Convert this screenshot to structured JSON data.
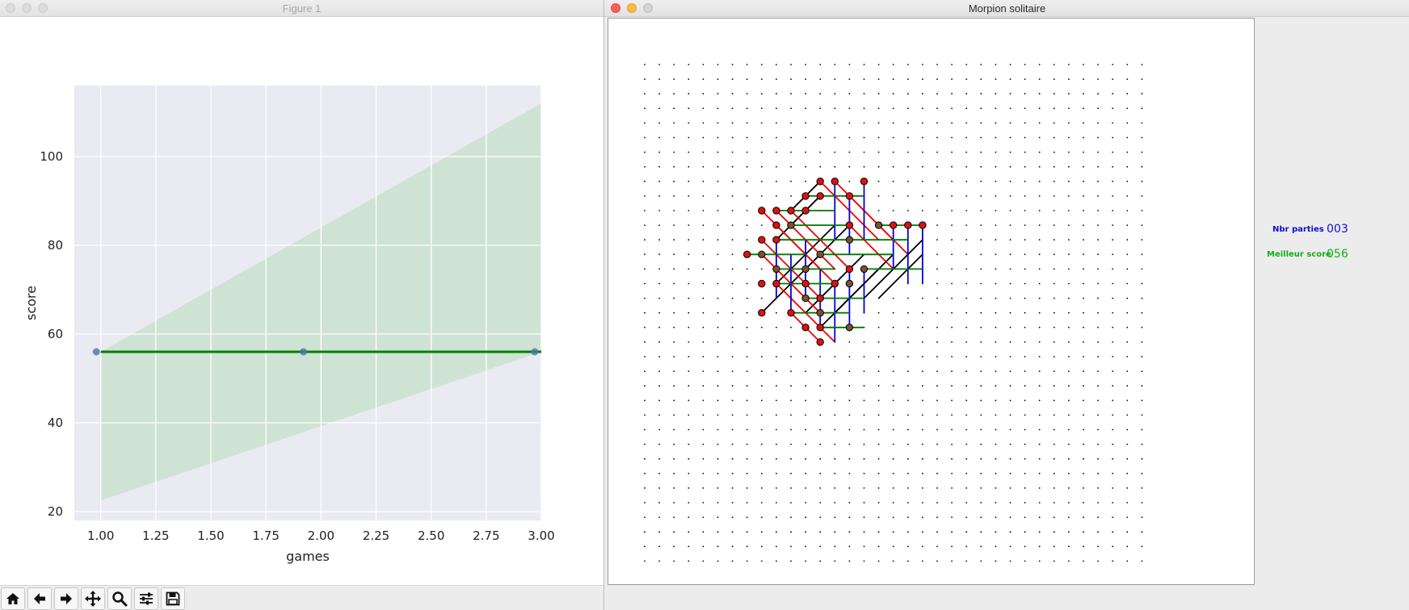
{
  "figure_window": {
    "title": "Figure 1",
    "toolbar": [
      {
        "name": "home",
        "icon": "home-icon"
      },
      {
        "name": "back",
        "icon": "arrow-left-icon"
      },
      {
        "name": "forward",
        "icon": "arrow-right-icon"
      },
      {
        "name": "pan",
        "icon": "move-icon"
      },
      {
        "name": "zoom",
        "icon": "search-icon"
      },
      {
        "name": "configure",
        "icon": "sliders-icon"
      },
      {
        "name": "save",
        "icon": "save-icon"
      }
    ]
  },
  "chart_data": {
    "type": "line",
    "style": "seaborn-regression",
    "xlabel": "games",
    "ylabel": "score",
    "xlim": [
      0.88,
      3.0
    ],
    "ylim": [
      18,
      116
    ],
    "x_ticks": [
      "1.00",
      "1.25",
      "1.50",
      "1.75",
      "2.00",
      "2.25",
      "2.50",
      "2.75",
      "3.00"
    ],
    "y_ticks": [
      "20",
      "40",
      "60",
      "80",
      "100"
    ],
    "grid": true,
    "scatter_points": [
      {
        "x": 0.98,
        "y": 56
      },
      {
        "x": 1.92,
        "y": 56
      },
      {
        "x": 2.97,
        "y": 56
      }
    ],
    "regression_line": {
      "x": [
        1.0,
        3.0
      ],
      "y": [
        56,
        56
      ],
      "color": "#008000"
    },
    "confidence_band": {
      "x": [
        1.0,
        3.0
      ],
      "upper": [
        56,
        112
      ],
      "lower": [
        22.5,
        56
      ]
    },
    "colors": {
      "points": "#4c72b0",
      "band": "#cfe3d4",
      "background": "#eaeaf2",
      "grid": "#ffffff"
    }
  },
  "game_window": {
    "title": "Morpion solitaire",
    "stats": {
      "games_label": "Nbr parties",
      "games_value": "003",
      "best_label": "Meilleur score",
      "best_value": "056"
    },
    "colors": {
      "games": "#1010d0",
      "best": "#10b010"
    }
  },
  "board": {
    "cols": 35,
    "rows": 35,
    "cells": [
      {
        "c": 12,
        "r": 8,
        "red": true
      },
      {
        "c": 13,
        "r": 8,
        "red": true
      },
      {
        "c": 15,
        "r": 8,
        "red": true
      },
      {
        "c": 11,
        "r": 9,
        "red": true
      },
      {
        "c": 12,
        "r": 9,
        "red": true
      },
      {
        "c": 14,
        "r": 9,
        "red": true
      },
      {
        "c": 8,
        "r": 10,
        "red": true
      },
      {
        "c": 9,
        "r": 10,
        "red": true
      },
      {
        "c": 10,
        "r": 10,
        "red": true
      },
      {
        "c": 11,
        "r": 10,
        "red": true
      },
      {
        "c": 9,
        "r": 11,
        "red": true
      },
      {
        "c": 10,
        "r": 11,
        "red": false
      },
      {
        "c": 14,
        "r": 11,
        "red": true
      },
      {
        "c": 16,
        "r": 11,
        "red": false
      },
      {
        "c": 17,
        "r": 11,
        "red": true
      },
      {
        "c": 18,
        "r": 11,
        "red": true
      },
      {
        "c": 19,
        "r": 11,
        "red": true
      },
      {
        "c": 8,
        "r": 12,
        "red": true
      },
      {
        "c": 9,
        "r": 12,
        "red": true
      },
      {
        "c": 14,
        "r": 12,
        "red": false
      },
      {
        "c": 7,
        "r": 13,
        "red": true
      },
      {
        "c": 8,
        "r": 13,
        "red": false
      },
      {
        "c": 12,
        "r": 13,
        "red": false
      },
      {
        "c": 9,
        "r": 14,
        "red": false
      },
      {
        "c": 11,
        "r": 14,
        "red": false
      },
      {
        "c": 14,
        "r": 14,
        "red": true
      },
      {
        "c": 15,
        "r": 14,
        "red": false
      },
      {
        "c": 8,
        "r": 15,
        "red": true
      },
      {
        "c": 9,
        "r": 15,
        "red": true
      },
      {
        "c": 11,
        "r": 15,
        "red": true
      },
      {
        "c": 13,
        "r": 15,
        "red": true
      },
      {
        "c": 14,
        "r": 15,
        "red": false
      },
      {
        "c": 11,
        "r": 16,
        "red": false
      },
      {
        "c": 12,
        "r": 16,
        "red": true
      },
      {
        "c": 8,
        "r": 17,
        "red": true
      },
      {
        "c": 10,
        "r": 17,
        "red": true
      },
      {
        "c": 12,
        "r": 17,
        "red": false
      },
      {
        "c": 11,
        "r": 18,
        "red": true
      },
      {
        "c": 12,
        "r": 18,
        "red": true
      },
      {
        "c": 14,
        "r": 18,
        "red": false
      },
      {
        "c": 12,
        "r": 19,
        "red": true
      }
    ],
    "lines": [
      {
        "color": "black",
        "from": [
          8,
          17
        ],
        "to": [
          12,
          13
        ]
      },
      {
        "color": "black",
        "from": [
          9,
          15
        ],
        "to": [
          13,
          11
        ]
      },
      {
        "color": "black",
        "from": [
          9,
          12
        ],
        "to": [
          12,
          9
        ]
      },
      {
        "color": "black",
        "from": [
          10,
          11
        ],
        "to": [
          12,
          9
        ]
      },
      {
        "color": "black",
        "from": [
          10,
          10
        ],
        "to": [
          12,
          8
        ]
      },
      {
        "color": "black",
        "from": [
          11,
          17
        ],
        "to": [
          15,
          13
        ]
      },
      {
        "color": "black",
        "from": [
          12,
          18
        ],
        "to": [
          16,
          14
        ]
      },
      {
        "color": "black",
        "from": [
          13,
          17
        ],
        "to": [
          17,
          13
        ]
      },
      {
        "color": "black",
        "from": [
          15,
          16
        ],
        "to": [
          19,
          12
        ]
      },
      {
        "color": "black",
        "from": [
          16,
          16
        ],
        "to": [
          19,
          13
        ]
      },
      {
        "color": "black",
        "from": [
          11,
          14
        ],
        "to": [
          14,
          11
        ]
      },
      {
        "color": "red",
        "from": [
          8,
          10
        ],
        "to": [
          12,
          14
        ]
      },
      {
        "color": "red",
        "from": [
          8,
          12
        ],
        "to": [
          12,
          16
        ]
      },
      {
        "color": "red",
        "from": [
          9,
          10
        ],
        "to": [
          13,
          14
        ]
      },
      {
        "color": "red",
        "from": [
          10,
          10
        ],
        "to": [
          14,
          14
        ]
      },
      {
        "color": "red",
        "from": [
          12,
          8
        ],
        "to": [
          16,
          12
        ]
      },
      {
        "color": "red",
        "from": [
          13,
          8
        ],
        "to": [
          17,
          12
        ]
      },
      {
        "color": "red",
        "from": [
          14,
          9
        ],
        "to": [
          18,
          13
        ]
      },
      {
        "color": "red",
        "from": [
          9,
          11
        ],
        "to": [
          13,
          15
        ]
      },
      {
        "color": "red",
        "from": [
          8,
          13
        ],
        "to": [
          12,
          17
        ]
      },
      {
        "color": "red",
        "from": [
          9,
          15
        ],
        "to": [
          13,
          19
        ]
      },
      {
        "color": "red",
        "from": [
          10,
          17
        ],
        "to": [
          12,
          19
        ]
      },
      {
        "color": "red",
        "from": [
          14,
          11
        ],
        "to": [
          17,
          14
        ]
      },
      {
        "color": "blue",
        "from": [
          13,
          8
        ],
        "to": [
          13,
          12
        ]
      },
      {
        "color": "blue",
        "from": [
          15,
          8
        ],
        "to": [
          15,
          12
        ]
      },
      {
        "color": "blue",
        "from": [
          14,
          9
        ],
        "to": [
          14,
          13
        ]
      },
      {
        "color": "blue",
        "from": [
          11,
          12
        ],
        "to": [
          11,
          16
        ]
      },
      {
        "color": "blue",
        "from": [
          12,
          14
        ],
        "to": [
          12,
          18
        ]
      },
      {
        "color": "blue",
        "from": [
          13,
          15
        ],
        "to": [
          13,
          19
        ]
      },
      {
        "color": "blue",
        "from": [
          14,
          14
        ],
        "to": [
          14,
          18
        ]
      },
      {
        "color": "blue",
        "from": [
          9,
          12
        ],
        "to": [
          9,
          16
        ]
      },
      {
        "color": "blue",
        "from": [
          10,
          13
        ],
        "to": [
          10,
          17
        ]
      },
      {
        "color": "blue",
        "from": [
          15,
          14
        ],
        "to": [
          15,
          17
        ]
      },
      {
        "color": "blue",
        "from": [
          17,
          11
        ],
        "to": [
          17,
          14
        ]
      },
      {
        "color": "blue",
        "from": [
          18,
          11
        ],
        "to": [
          18,
          15
        ]
      },
      {
        "color": "blue",
        "from": [
          19,
          11
        ],
        "to": [
          19,
          15
        ]
      },
      {
        "color": "green",
        "from": [
          11,
          9
        ],
        "to": [
          15,
          9
        ]
      },
      {
        "color": "green",
        "from": [
          9,
          10
        ],
        "to": [
          13,
          10
        ]
      },
      {
        "color": "green",
        "from": [
          16,
          11
        ],
        "to": [
          19,
          11
        ]
      },
      {
        "color": "green",
        "from": [
          10,
          11
        ],
        "to": [
          14,
          11
        ]
      },
      {
        "color": "green",
        "from": [
          9,
          12
        ],
        "to": [
          14,
          12
        ]
      },
      {
        "color": "green",
        "from": [
          14,
          12
        ],
        "to": [
          18,
          12
        ]
      },
      {
        "color": "green",
        "from": [
          7,
          13
        ],
        "to": [
          11,
          13
        ]
      },
      {
        "color": "green",
        "from": [
          12,
          13
        ],
        "to": [
          17,
          13
        ]
      },
      {
        "color": "green",
        "from": [
          9,
          14
        ],
        "to": [
          13,
          14
        ]
      },
      {
        "color": "green",
        "from": [
          15,
          14
        ],
        "to": [
          19,
          14
        ]
      },
      {
        "color": "green",
        "from": [
          9,
          15
        ],
        "to": [
          13,
          15
        ]
      },
      {
        "color": "green",
        "from": [
          11,
          16
        ],
        "to": [
          15,
          16
        ]
      },
      {
        "color": "green",
        "from": [
          10,
          17
        ],
        "to": [
          14,
          17
        ]
      },
      {
        "color": "green",
        "from": [
          12,
          18
        ],
        "to": [
          15,
          18
        ]
      }
    ]
  }
}
